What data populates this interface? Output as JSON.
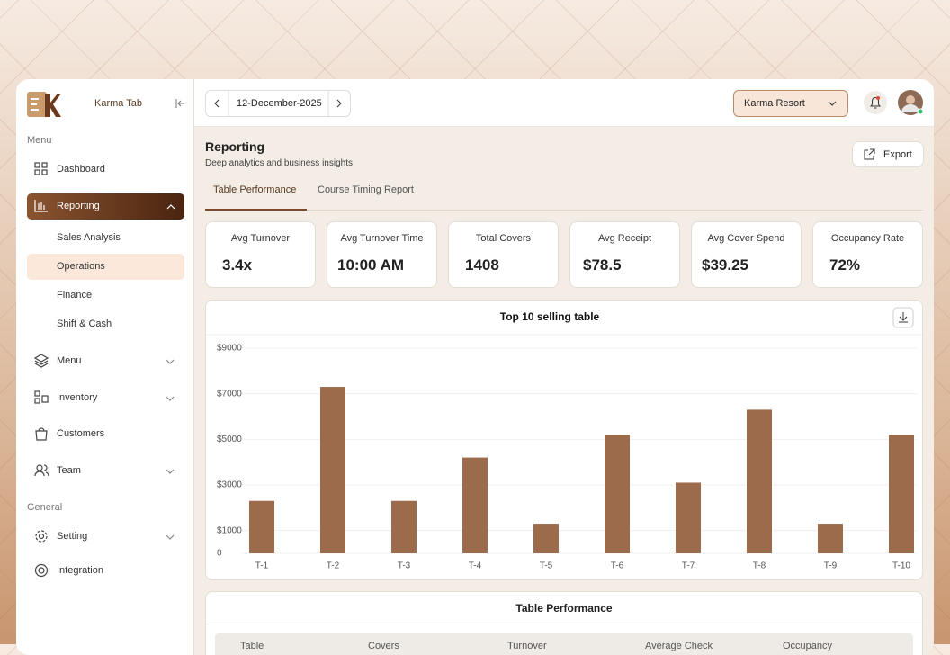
{
  "sidebar": {
    "brand": "Karma Tab",
    "menu_heading": "Menu",
    "items": [
      "Dashboard",
      "Reporting",
      "Menu",
      "Inventory",
      "Customers",
      "Team"
    ],
    "reporting_subitems": [
      "Sales Analysis",
      "Operations",
      "Finance",
      "Shift & Cash"
    ],
    "general_heading": "General",
    "general_items": [
      "Setting",
      "Integration"
    ]
  },
  "header": {
    "date": "12-December-2025",
    "venue": "Karma Resort"
  },
  "page": {
    "title": "Reporting",
    "subtitle": "Deep analytics and business insights",
    "export": "Export",
    "tabs": [
      "Table Performance",
      "Course Timing Report"
    ]
  },
  "kpis": [
    {
      "label": "Avg Turnover",
      "value": "3.4x"
    },
    {
      "label": "Avg Turnover Time",
      "value": "10:00 AM"
    },
    {
      "label": "Total Covers",
      "value": 1408
    },
    {
      "label": "Avg Receipt",
      "value": "$78.5"
    },
    {
      "label": "Avg Cover Spend",
      "value": "$39.25"
    },
    {
      "label": "Occupancy Rate",
      "value": "72%"
    }
  ],
  "chart_data": {
    "type": "bar",
    "title": "Top 10 selling table",
    "categories": [
      "T-1",
      "T-2",
      "T-3",
      "T-4",
      "T-5",
      "T-6",
      "T-7",
      "T-8",
      "T-9",
      "T-10"
    ],
    "values": [
      2300,
      7300,
      2300,
      4200,
      1300,
      5200,
      3100,
      6300,
      1300,
      5200
    ],
    "color": "#9c6b4b",
    "ylim": [
      0,
      9000
    ],
    "yticks": [
      0,
      {
        "value": 1000,
        "label": "$1000"
      },
      {
        "value": 3000,
        "label": "$3000"
      },
      {
        "value": 5000,
        "label": "$5000"
      },
      {
        "value": 7000,
        "label": "$7000"
      },
      {
        "value": 9000,
        "label": "$9000"
      }
    ],
    "grid": true
  },
  "table": {
    "title": "Table Performance",
    "columns": [
      "Table",
      "Covers",
      "Turnover",
      "Average Check",
      "Occupancy"
    ]
  }
}
